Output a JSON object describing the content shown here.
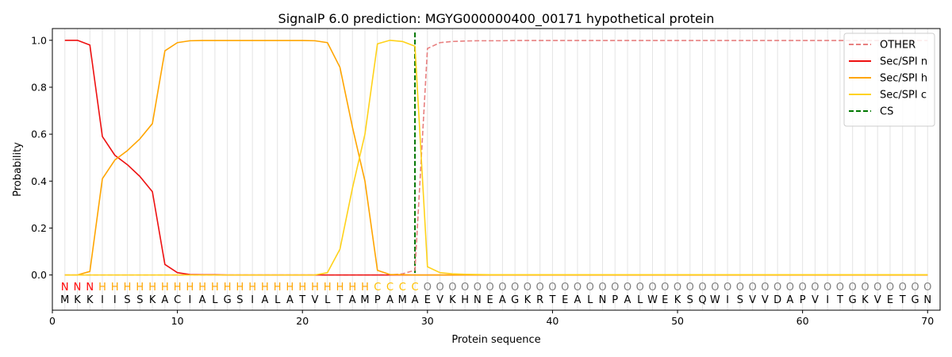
{
  "chart_data": {
    "type": "line",
    "title": "SignalP 6.0 prediction: MGYG000000400_00171 hypothetical protein",
    "xlabel": "Protein sequence",
    "ylabel": "Probability",
    "xlim": [
      0,
      71
    ],
    "ylim": [
      -0.15,
      1.05
    ],
    "x_ticks": [
      0,
      10,
      20,
      30,
      40,
      50,
      60,
      70
    ],
    "y_ticks": [
      0.0,
      0.2,
      0.4,
      0.6,
      0.8,
      1.0
    ],
    "x_tick_labels": [
      "0",
      "10",
      "20",
      "30",
      "40",
      "50",
      "60",
      "70"
    ],
    "y_tick_labels": [
      "0.0",
      "0.2",
      "0.4",
      "0.6",
      "0.8",
      "1.0"
    ],
    "grid": "vertical lines at each residue",
    "legend_position": "top-right",
    "cleavage_site": 29,
    "sequence": [
      "M",
      "K",
      "K",
      "I",
      "I",
      "S",
      "S",
      "K",
      "A",
      "C",
      "I",
      "A",
      "L",
      "G",
      "S",
      "I",
      "A",
      "L",
      "A",
      "T",
      "V",
      "L",
      "T",
      "A",
      "M",
      "P",
      "A",
      "M",
      "A",
      "E",
      "V",
      "K",
      "H",
      "N",
      "E",
      "A",
      "G",
      "K",
      "R",
      "T",
      "E",
      "A",
      "L",
      "N",
      "P",
      "A",
      "L",
      "W",
      "E",
      "K",
      "S",
      "Q",
      "W",
      "I",
      "S",
      "V",
      "V",
      "D",
      "A",
      "P",
      "V",
      "I",
      "T",
      "G",
      "K",
      "V",
      "E",
      "T",
      "G",
      "N"
    ],
    "region_labels": [
      "N",
      "N",
      "N",
      "H",
      "H",
      "H",
      "H",
      "H",
      "H",
      "H",
      "H",
      "H",
      "H",
      "H",
      "H",
      "H",
      "H",
      "H",
      "H",
      "H",
      "H",
      "H",
      "H",
      "H",
      "H",
      "C",
      "C",
      "C",
      "C",
      "O",
      "O",
      "O",
      "O",
      "O",
      "O",
      "O",
      "O",
      "O",
      "O",
      "O",
      "O",
      "O",
      "O",
      "O",
      "O",
      "O",
      "O",
      "O",
      "O",
      "O",
      "O",
      "O",
      "O",
      "O",
      "O",
      "O",
      "O",
      "O",
      "O",
      "O",
      "O",
      "O",
      "O",
      "O",
      "O",
      "O",
      "O",
      "O",
      "O",
      "O"
    ],
    "region_colors": {
      "N": "#ff0000",
      "H": "#ffa500",
      "C": "#ffc000",
      "O": "#808080"
    },
    "series": [
      {
        "name": "OTHER",
        "color": "#e88080",
        "dash": "dashed",
        "values": [
          0,
          0,
          0,
          0,
          0,
          0,
          0,
          0,
          0,
          0,
          0,
          0,
          0,
          0,
          0,
          0,
          0,
          0,
          0,
          0,
          0,
          0,
          0,
          0,
          0,
          0,
          0,
          0.005,
          0.02,
          0.965,
          0.99,
          0.995,
          0.997,
          0.998,
          0.998,
          0.998,
          0.999,
          0.999,
          0.999,
          0.999,
          0.999,
          0.999,
          0.999,
          0.999,
          0.999,
          0.999,
          0.999,
          0.999,
          0.999,
          0.999,
          0.999,
          0.999,
          0.999,
          0.999,
          0.999,
          0.999,
          0.999,
          0.999,
          0.999,
          0.999,
          0.999,
          0.999,
          0.999,
          0.999,
          0.999,
          0.999,
          0.999,
          0.999,
          0.999,
          0.999
        ]
      },
      {
        "name": "Sec/SPI n",
        "color": "#ee1111",
        "dash": "solid",
        "values": [
          1.0,
          1.0,
          0.98,
          0.59,
          0.51,
          0.47,
          0.42,
          0.355,
          0.045,
          0.01,
          0.002,
          0.001,
          0.001,
          0,
          0,
          0,
          0,
          0,
          0,
          0,
          0,
          0,
          0,
          0,
          0,
          0,
          0,
          0,
          0,
          0,
          0,
          0,
          0,
          0,
          0,
          0,
          0,
          0,
          0,
          0,
          0,
          0,
          0,
          0,
          0,
          0,
          0,
          0,
          0,
          0,
          0,
          0,
          0,
          0,
          0,
          0,
          0,
          0,
          0,
          0,
          0,
          0,
          0,
          0,
          0,
          0,
          0,
          0,
          0,
          0
        ]
      },
      {
        "name": "Sec/SPI h",
        "color": "#ffa500",
        "dash": "solid",
        "values": [
          0,
          0,
          0.015,
          0.41,
          0.49,
          0.53,
          0.58,
          0.645,
          0.955,
          0.99,
          0.998,
          0.999,
          0.999,
          0.999,
          0.999,
          0.999,
          0.999,
          0.999,
          0.999,
          0.999,
          0.998,
          0.99,
          0.885,
          0.63,
          0.4,
          0.02,
          0.002,
          0.001,
          0,
          0,
          0,
          0,
          0,
          0,
          0,
          0,
          0,
          0,
          0,
          0,
          0,
          0,
          0,
          0,
          0,
          0,
          0,
          0,
          0,
          0,
          0,
          0,
          0,
          0,
          0,
          0,
          0,
          0,
          0,
          0,
          0,
          0,
          0,
          0,
          0,
          0,
          0,
          0,
          0,
          0
        ]
      },
      {
        "name": "Sec/SPI c",
        "color": "#ffd21a",
        "dash": "solid",
        "values": [
          0,
          0,
          0,
          0,
          0,
          0,
          0,
          0,
          0,
          0,
          0,
          0,
          0,
          0,
          0,
          0,
          0,
          0,
          0,
          0,
          0,
          0.01,
          0.11,
          0.37,
          0.6,
          0.985,
          1.0,
          0.995,
          0.975,
          0.035,
          0.01,
          0.005,
          0.003,
          0.002,
          0.001,
          0.001,
          0.001,
          0.001,
          0.001,
          0.001,
          0.001,
          0.001,
          0.001,
          0.001,
          0.001,
          0.001,
          0.001,
          0.001,
          0.001,
          0.001,
          0.001,
          0.001,
          0.001,
          0.001,
          0.001,
          0.001,
          0.001,
          0.001,
          0.001,
          0.001,
          0.001,
          0.001,
          0.001,
          0.001,
          0.001,
          0.001,
          0.001,
          0.001,
          0.001,
          0.001
        ]
      },
      {
        "name": "CS",
        "color": "#007700",
        "dash": "dashed",
        "values": []
      }
    ]
  }
}
